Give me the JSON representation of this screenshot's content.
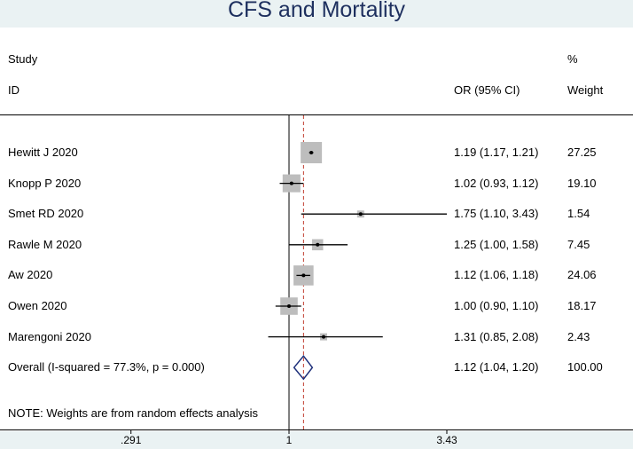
{
  "title": "CFS and Mortality",
  "header": {
    "study_line1": "Study",
    "study_line2": "ID",
    "or_label": "OR (95% CI)",
    "weight_line1": "%",
    "weight_line2": "Weight"
  },
  "note": "NOTE: Weights are from random effects analysis",
  "colors": {
    "title_background": "#eaf2f3",
    "title_text": "#1d2f5e",
    "box_fill": "#bdbdbd",
    "overall_diamond": "#1d2f7a",
    "overall_line": "#c0392b"
  },
  "chart_data": {
    "type": "forest",
    "scale": "log",
    "null_line": 1,
    "x_ticks": [
      ".291",
      "1",
      "3.43"
    ],
    "xlim": [
      0.291,
      3.43
    ],
    "studies": [
      {
        "name": "Hewitt J 2020",
        "or": 1.19,
        "lo": 1.17,
        "hi": 1.21,
        "ci_text": "1.19 (1.17, 1.21)",
        "weight": "27.25"
      },
      {
        "name": "Knopp P 2020",
        "or": 1.02,
        "lo": 0.93,
        "hi": 1.12,
        "ci_text": "1.02 (0.93, 1.12)",
        "weight": "19.10"
      },
      {
        "name": "Smet RD 2020",
        "or": 1.75,
        "lo": 1.1,
        "hi": 3.43,
        "ci_text": "1.75 (1.10, 3.43)",
        "weight": "1.54"
      },
      {
        "name": "Rawle M 2020",
        "or": 1.25,
        "lo": 1.0,
        "hi": 1.58,
        "ci_text": "1.25 (1.00, 1.58)",
        "weight": "7.45"
      },
      {
        "name": "Aw 2020",
        "or": 1.12,
        "lo": 1.06,
        "hi": 1.18,
        "ci_text": "1.12 (1.06, 1.18)",
        "weight": "24.06"
      },
      {
        "name": "Owen 2020",
        "or": 1.0,
        "lo": 0.9,
        "hi": 1.1,
        "ci_text": "1.00 (0.90, 1.10)",
        "weight": "18.17"
      },
      {
        "name": "Marengoni 2020",
        "or": 1.31,
        "lo": 0.85,
        "hi": 2.08,
        "ci_text": "1.31 (0.85, 2.08)",
        "weight": "2.43"
      }
    ],
    "overall": {
      "name": "Overall  (I-squared = 77.3%, p = 0.000)",
      "or": 1.12,
      "lo": 1.04,
      "hi": 1.2,
      "ci_text": "1.12 (1.04, 1.20)",
      "weight": "100.00"
    }
  }
}
